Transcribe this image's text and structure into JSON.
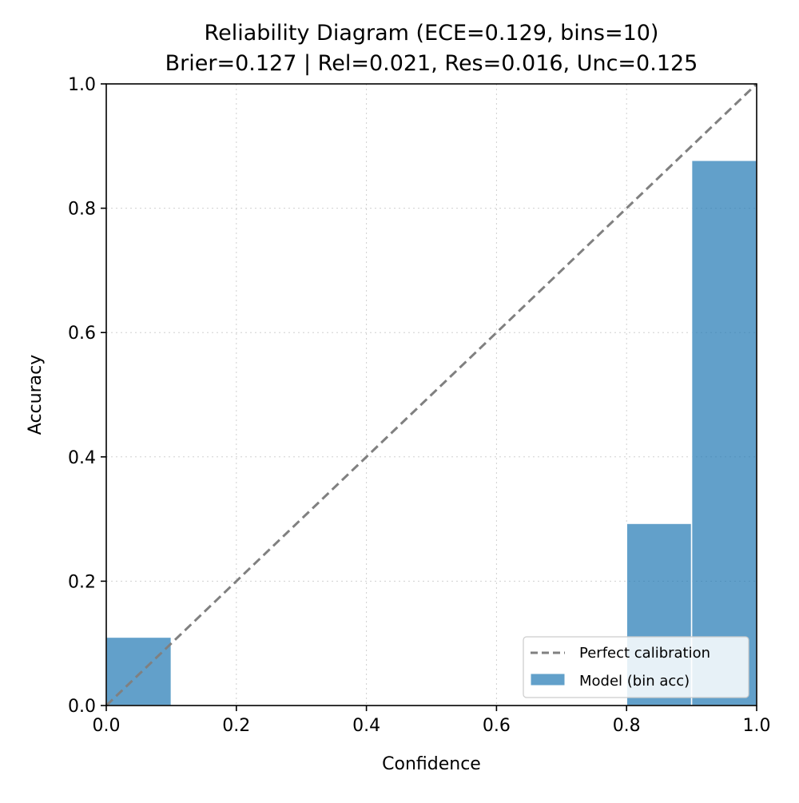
{
  "chart_data": {
    "type": "bar",
    "title": "Reliability Diagram (ECE=0.129, bins=10)",
    "subtitle": "Brier=0.127 | Rel=0.021, Res=0.016, Unc=0.125",
    "xlabel": "Confidence",
    "ylabel": "Accuracy",
    "xlim": [
      0.0,
      1.0
    ],
    "ylim": [
      0.0,
      1.0
    ],
    "grid": true,
    "legend_position": "lower-right",
    "x_ticks": [
      "0.0",
      "0.2",
      "0.4",
      "0.6",
      "0.8",
      "1.0"
    ],
    "y_ticks": [
      "0.0",
      "0.2",
      "0.4",
      "0.6",
      "0.8",
      "1.0"
    ],
    "bin_width": 0.1,
    "bins": [
      {
        "bin_start": 0.0,
        "accuracy": 0.11
      },
      {
        "bin_start": 0.8,
        "accuracy": 0.293
      },
      {
        "bin_start": 0.9,
        "accuracy": 0.877
      }
    ],
    "reference_line": {
      "name": "Perfect calibration",
      "from": [
        0.0,
        0.0
      ],
      "to": [
        1.0,
        1.0
      ],
      "style": "dashed",
      "color": "#808080"
    },
    "series": [
      {
        "name": "Model (bin acc)",
        "color": "#1f77b4"
      }
    ],
    "legend": [
      "Perfect calibration",
      "Model (bin acc)"
    ]
  }
}
